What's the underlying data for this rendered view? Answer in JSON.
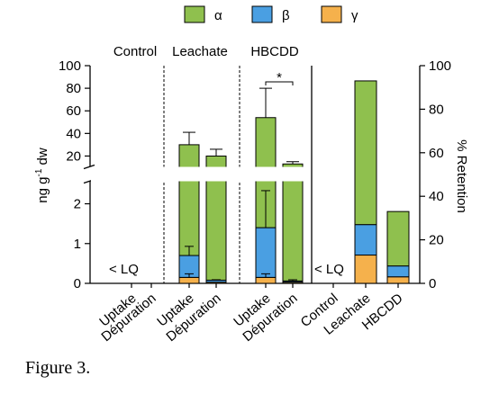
{
  "caption": "Figure 3.",
  "colors": {
    "alpha": "#8fc04e",
    "beta": "#4a9fe2",
    "gamma": "#f5b14c",
    "axis": "#000000"
  },
  "legend": [
    {
      "key": "alpha",
      "label": "α"
    },
    {
      "key": "beta",
      "label": "β"
    },
    {
      "key": "gamma",
      "label": "γ"
    }
  ],
  "chart_data": [
    {
      "type": "bar",
      "stacked": true,
      "y_axis_broken": true,
      "ylabel_main": "ng g",
      "ylabel_sup": "-1",
      "ylabel_tail": " dw",
      "yticks_lower": [
        0,
        1,
        2
      ],
      "yticks_upper": [
        20,
        40,
        60,
        80,
        100
      ],
      "ylim_lower": [
        0,
        2.6
      ],
      "ylim_upper": [
        10,
        100
      ],
      "groups": [
        "Control",
        "Leachate",
        "HBCDD"
      ],
      "categories": [
        "Uptake",
        "Dépuration",
        "Uptake",
        "Dépuration",
        "Uptake",
        "Dépuration"
      ],
      "annotations": [
        {
          "text": "< LQ",
          "group": "Control"
        },
        {
          "text": "*",
          "between": "HBCDD Uptake and HBCDD Dépuration"
        }
      ],
      "series": [
        {
          "name": "γ",
          "key": "gamma",
          "values": [
            0,
            0,
            0.15,
            0.03,
            0.15,
            0.03
          ]
        },
        {
          "name": "β",
          "key": "beta",
          "values": [
            0,
            0,
            0.55,
            0.05,
            1.25,
            0.03
          ]
        },
        {
          "name": "α",
          "key": "alpha",
          "values": [
            0,
            0,
            29.3,
            19.9,
            52.6,
            12.9
          ]
        }
      ],
      "totals": [
        0,
        0,
        30,
        20,
        54,
        13
      ],
      "error_bars": [
        null,
        null,
        {
          "upper_total": 41,
          "upper_beta": 0.93,
          "upper_gamma": 0.24
        },
        {
          "upper_total": 26,
          "upper_beta": 0.09
        },
        {
          "upper_total": 80,
          "upper_beta": 2.33,
          "upper_gamma": 0.24
        },
        {
          "upper_total": 15,
          "upper_beta": 0.09
        }
      ]
    },
    {
      "type": "bar",
      "stacked": true,
      "ylabel": "% Retention",
      "ylim": [
        0,
        100
      ],
      "yticks": [
        0,
        20,
        40,
        60,
        80,
        100
      ],
      "categories": [
        "Control",
        "Leachate",
        "HBCDD"
      ],
      "annotations": [
        {
          "text": "< LQ",
          "category": "Control"
        }
      ],
      "series": [
        {
          "name": "γ",
          "key": "gamma",
          "values": [
            0,
            13,
            3
          ]
        },
        {
          "name": "β",
          "key": "beta",
          "values": [
            0,
            14,
            5
          ]
        },
        {
          "name": "α",
          "key": "alpha",
          "values": [
            0,
            66,
            25
          ]
        }
      ]
    }
  ]
}
